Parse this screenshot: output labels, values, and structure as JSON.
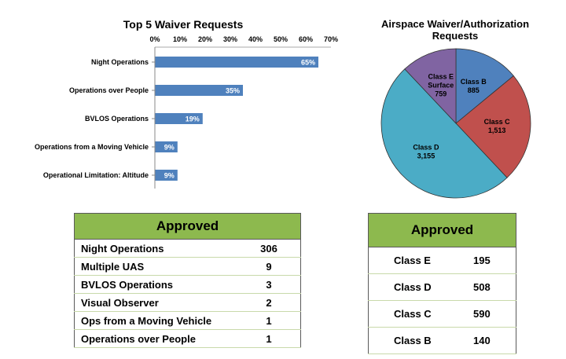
{
  "chart_data": [
    {
      "type": "bar",
      "orientation": "horizontal",
      "title": "Top 5 Waiver Requests",
      "categories": [
        "Night  Operations",
        "Operations over People",
        "BVLOS Operations",
        "Operations from a Moving Vehicle",
        "Operational Limitation: Altitude"
      ],
      "values": [
        65,
        35,
        19,
        9,
        9
      ],
      "data_labels": [
        "65%",
        "35%",
        "19%",
        "9%",
        "9%"
      ],
      "xlim": [
        0,
        70
      ],
      "xticks": [
        "0%",
        "10%",
        "20%",
        "30%",
        "40%",
        "50%",
        "60%",
        "70%"
      ],
      "xaxis_position": "top",
      "grid": false,
      "bar_color": "#4f81bd"
    },
    {
      "type": "pie",
      "title": "Airspace Waiver/Authorization Requests",
      "title_lines": [
        "Airspace Waiver/Authorization",
        "Requests"
      ],
      "slices": [
        {
          "name": "Class B",
          "value": 885,
          "value_label": "885",
          "color": "#4f81bd"
        },
        {
          "name": "Class C",
          "value": 1513,
          "value_label": "1,513",
          "color": "#c0504d"
        },
        {
          "name": "Class D",
          "value": 3155,
          "value_label": "3,155",
          "color": "#4bacc6"
        },
        {
          "name": "Class E Surface",
          "name_lines": [
            "Class E",
            "Surface"
          ],
          "value": 759,
          "value_label": "759",
          "color": "#8064a2"
        }
      ]
    }
  ],
  "approved_waivers": {
    "header": "Approved",
    "rows": [
      {
        "label": "Night Operations",
        "value": "306"
      },
      {
        "label": "Multiple UAS",
        "value": "9"
      },
      {
        "label": "BVLOS Operations",
        "value": "3"
      },
      {
        "label": "Visual Observer",
        "value": "2"
      },
      {
        "label": "Ops from a Moving Vehicle",
        "value": "1"
      },
      {
        "label": "Operations over People",
        "value": "1"
      }
    ]
  },
  "approved_airspace": {
    "header": "Approved",
    "rows": [
      {
        "label": "Class E",
        "value": "195"
      },
      {
        "label": "Class D",
        "value": "508"
      },
      {
        "label": "Class C",
        "value": "590"
      },
      {
        "label": "Class B",
        "value": "140"
      }
    ]
  }
}
